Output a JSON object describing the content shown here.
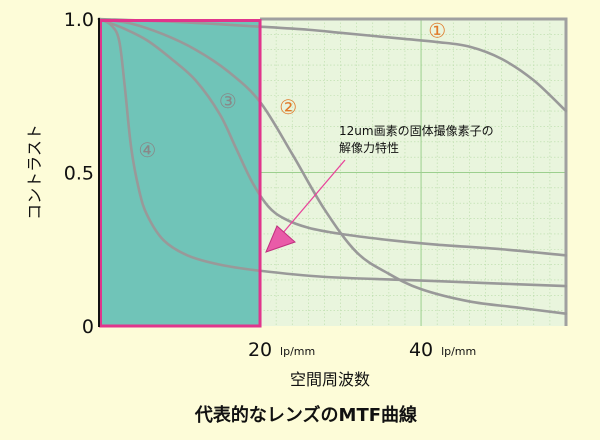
{
  "chart_data": {
    "type": "line",
    "title": "代表的なレンズのMTF曲線",
    "xlabel": "空間周波数",
    "ylabel": "コントラスト",
    "xlim": [
      0,
      58
    ],
    "ylim": [
      0,
      1
    ],
    "x_ticks": [
      {
        "value": 20,
        "label": "20",
        "unit": "lp/mm"
      },
      {
        "value": 40,
        "label": "40",
        "unit": "lp/mm"
      }
    ],
    "y_ticks": [
      {
        "value": 0,
        "label": "0"
      },
      {
        "value": 0.5,
        "label": "0.5"
      },
      {
        "value": 1,
        "label": "1.0"
      }
    ],
    "grid": true,
    "highlight": {
      "x_from": 0,
      "x_to": 20,
      "color": "#70c4b8"
    },
    "resolution_limit": {
      "x": 20
    },
    "annotation": {
      "line1": "12um画素の固体撮像素子の",
      "line2": "解像力特性",
      "color": "#e8449b"
    },
    "series": [
      {
        "label": "①",
        "label_color": "#e07a2a",
        "label_at": [
          42,
          0.94
        ],
        "x": [
          0,
          10,
          20,
          26,
          30,
          34,
          38,
          42,
          46,
          50,
          54,
          58
        ],
        "y": [
          1.0,
          0.99,
          0.975,
          0.965,
          0.955,
          0.945,
          0.935,
          0.925,
          0.91,
          0.87,
          0.8,
          0.7
        ]
      },
      {
        "label": "②",
        "label_color": "#e07a2a",
        "label_at": [
          23.5,
          0.69
        ],
        "x": [
          0,
          4,
          8,
          12,
          16,
          20,
          24,
          28,
          32,
          36,
          40,
          46,
          52,
          58
        ],
        "y": [
          1.0,
          0.985,
          0.95,
          0.9,
          0.83,
          0.73,
          0.56,
          0.38,
          0.24,
          0.17,
          0.12,
          0.08,
          0.06,
          0.04
        ]
      },
      {
        "label": "③",
        "label_color": "#888888",
        "label_at": [
          16,
          0.71
        ],
        "x": [
          0,
          3,
          6,
          9,
          12,
          15,
          17,
          19,
          21,
          23,
          26,
          30,
          36,
          42,
          50,
          58
        ],
        "y": [
          1.0,
          0.97,
          0.93,
          0.87,
          0.8,
          0.69,
          0.58,
          0.47,
          0.39,
          0.35,
          0.32,
          0.3,
          0.28,
          0.265,
          0.25,
          0.23
        ]
      },
      {
        "label": "④",
        "label_color": "#888888",
        "label_at": [
          6,
          0.55
        ],
        "x": [
          0,
          1.5,
          2.5,
          3.2,
          4,
          5,
          6,
          8,
          11,
          15,
          20,
          28,
          38,
          48,
          58
        ],
        "y": [
          1.0,
          0.98,
          0.93,
          0.78,
          0.58,
          0.44,
          0.36,
          0.28,
          0.23,
          0.2,
          0.18,
          0.16,
          0.15,
          0.14,
          0.13
        ]
      }
    ],
    "colors": {
      "background": "#fdfcd8",
      "plot_area": "#e9f5dd",
      "grid": "#b8dca8",
      "curve": "#999999",
      "frame_right": "#a0a0a0",
      "limit_box": "#e0358c",
      "left_axis": "#111111"
    }
  }
}
